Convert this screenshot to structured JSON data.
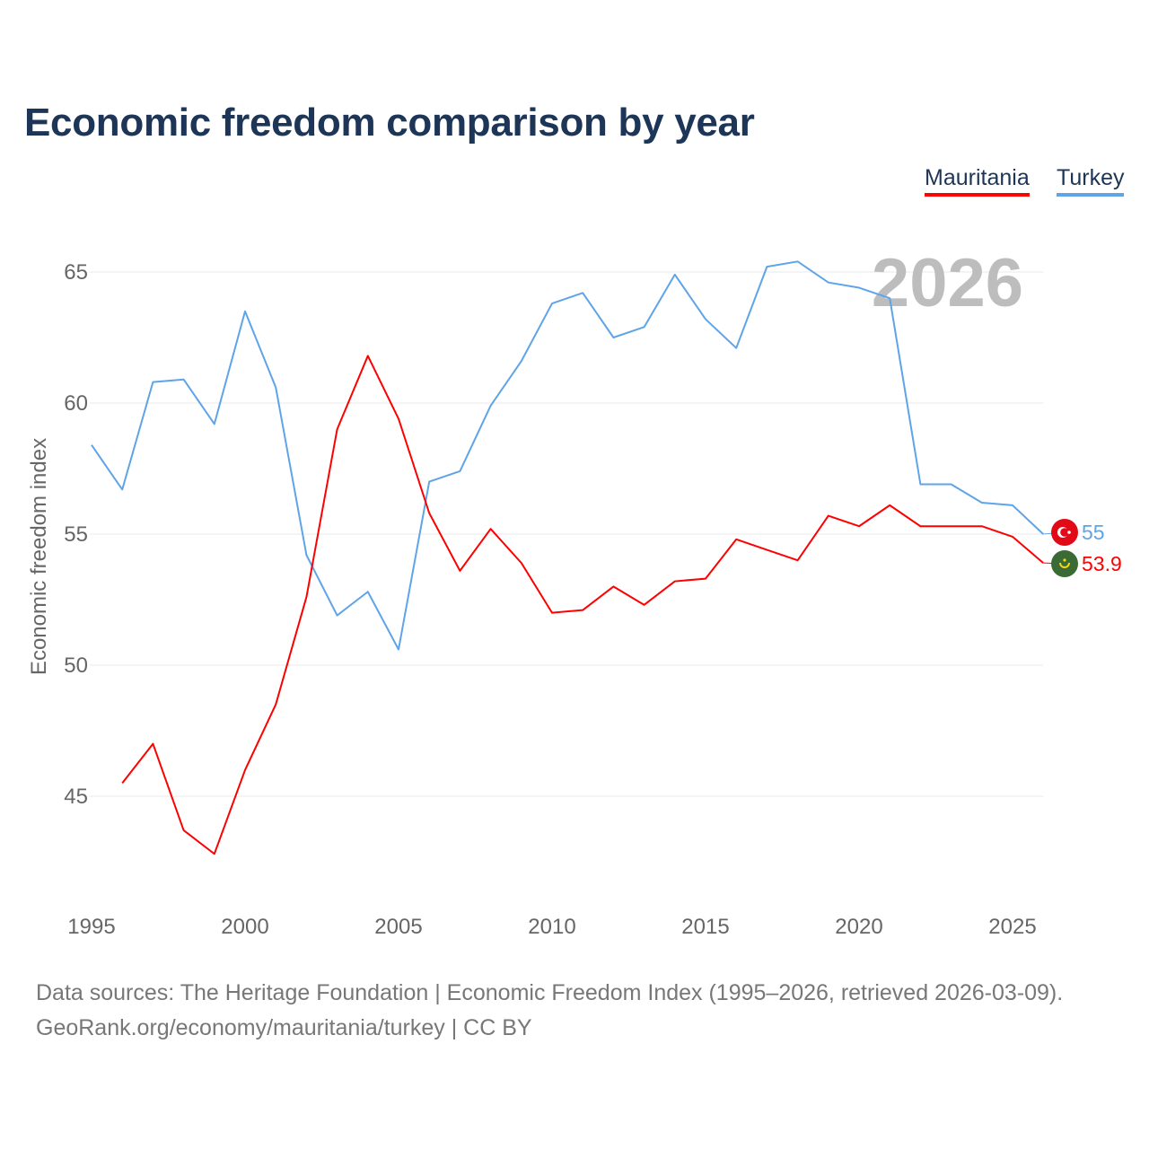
{
  "title": "Economic freedom comparison by year",
  "legend": [
    {
      "name": "Mauritania",
      "color": "#ff0000"
    },
    {
      "name": "Turkey",
      "color": "#5fa4e8"
    }
  ],
  "year_watermark": "2026",
  "source_line1": "Data sources: The Heritage Foundation | Economic Freedom Index (1995–2026, retrieved 2026-03-09).",
  "source_line2": "GeoRank.org/economy/mauritania/turkey | CC BY",
  "chart_data": {
    "type": "line",
    "title": "Economic freedom comparison by year",
    "xlabel": "",
    "ylabel": "Economic freedom index",
    "xlim": [
      1995,
      2026
    ],
    "ylim": [
      41.5,
      67
    ],
    "xticks": [
      1995,
      2000,
      2005,
      2010,
      2015,
      2020,
      2025
    ],
    "yticks": [
      45,
      50,
      55,
      60,
      65
    ],
    "grid": true,
    "legend_position": "top-right",
    "series": [
      {
        "name": "Turkey",
        "color": "#5fa4e8",
        "end_label": "55",
        "x": [
          1995,
          1996,
          1997,
          1998,
          1999,
          2000,
          2001,
          2002,
          2003,
          2004,
          2005,
          2006,
          2007,
          2008,
          2009,
          2010,
          2011,
          2012,
          2013,
          2014,
          2015,
          2016,
          2017,
          2018,
          2019,
          2020,
          2021,
          2022,
          2023,
          2024,
          2025,
          2026
        ],
        "y": [
          58.4,
          56.7,
          60.8,
          60.9,
          59.2,
          63.5,
          60.6,
          54.2,
          51.9,
          52.8,
          50.6,
          57.0,
          57.4,
          59.9,
          61.6,
          63.8,
          64.2,
          62.5,
          62.9,
          64.9,
          63.2,
          62.1,
          65.2,
          65.4,
          64.6,
          64.4,
          64.0,
          56.9,
          56.9,
          56.2,
          56.1,
          55.0
        ]
      },
      {
        "name": "Mauritania",
        "color": "#ff0000",
        "end_label": "53.9",
        "x": [
          1996,
          1997,
          1998,
          1999,
          2000,
          2001,
          2002,
          2003,
          2004,
          2005,
          2006,
          2007,
          2008,
          2009,
          2010,
          2011,
          2012,
          2013,
          2014,
          2015,
          2016,
          2017,
          2018,
          2019,
          2020,
          2021,
          2022,
          2023,
          2024,
          2025,
          2026
        ],
        "y": [
          45.5,
          47.0,
          43.7,
          42.8,
          46.0,
          48.5,
          52.6,
          59.0,
          61.8,
          59.4,
          55.8,
          53.6,
          55.2,
          53.9,
          52.0,
          52.1,
          53.0,
          52.3,
          53.2,
          53.3,
          54.8,
          54.4,
          54.0,
          55.7,
          55.3,
          56.1,
          55.3,
          55.3,
          55.3,
          54.9,
          53.9
        ]
      }
    ]
  }
}
